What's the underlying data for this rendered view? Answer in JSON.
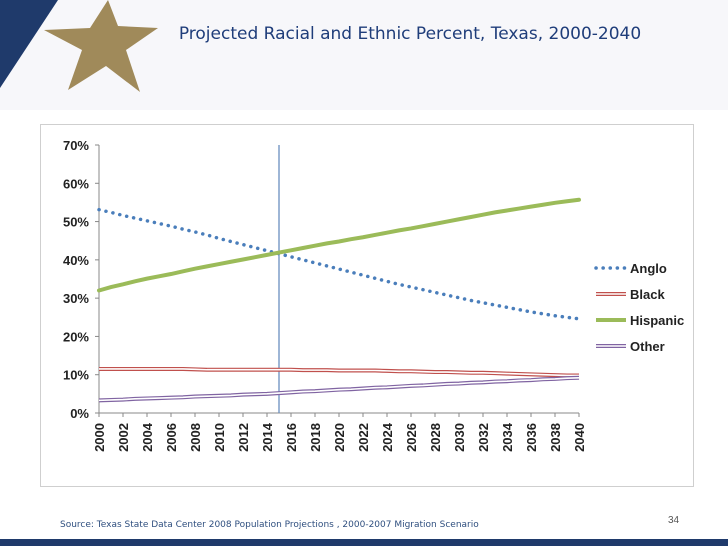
{
  "slide": {
    "title": "Projected Racial and Ethnic Percent, Texas, 2000-2040",
    "source": "Source: Texas State Data Center 2008 Population Projections , 2000-2007 Migration Scenario",
    "page_number": "34"
  },
  "colors": {
    "title": "#1f3d7a",
    "band": "#1f3a6b",
    "star": "#a08a5a",
    "anglo": "#4a7ebb",
    "black": "#c0504d",
    "hispanic": "#9bbb59",
    "other": "#8064a2",
    "marker_line": "#6a8fc0"
  },
  "chart_data": {
    "type": "line",
    "title": "",
    "xlabel": "",
    "ylabel": "",
    "x": [
      2000,
      2001,
      2002,
      2003,
      2004,
      2005,
      2006,
      2007,
      2008,
      2009,
      2010,
      2011,
      2012,
      2013,
      2014,
      2015,
      2016,
      2017,
      2018,
      2019,
      2020,
      2021,
      2022,
      2023,
      2024,
      2025,
      2026,
      2027,
      2028,
      2029,
      2030,
      2031,
      2032,
      2033,
      2034,
      2035,
      2036,
      2037,
      2038,
      2039,
      2040
    ],
    "xticks": [
      "2000",
      "2002",
      "2004",
      "2006",
      "2008",
      "2010",
      "2012",
      "2014",
      "2016",
      "2018",
      "2020",
      "2022",
      "2024",
      "2026",
      "2028",
      "2030",
      "2032",
      "2034",
      "2036",
      "2038",
      "2040"
    ],
    "yticks": [
      "0%",
      "10%",
      "20%",
      "30%",
      "40%",
      "50%",
      "60%",
      "70%"
    ],
    "ylim": [
      0,
      70
    ],
    "y_unit": "%",
    "vertical_marker_x": 2015,
    "legend_position": "right",
    "series": [
      {
        "name": "Anglo",
        "style": "dotted",
        "values": [
          53.1,
          52.4,
          51.6,
          50.9,
          50.2,
          49.5,
          48.8,
          48.0,
          47.3,
          46.5,
          45.6,
          44.8,
          44.0,
          43.2,
          42.4,
          41.6,
          40.8,
          40.0,
          39.2,
          38.4,
          37.6,
          36.8,
          36.0,
          35.2,
          34.4,
          33.6,
          32.9,
          32.2,
          31.5,
          30.8,
          30.1,
          29.4,
          28.8,
          28.2,
          27.6,
          27.0,
          26.4,
          25.9,
          25.4,
          25.0,
          24.6
        ]
      },
      {
        "name": "Black",
        "style": "double",
        "values": [
          11.5,
          11.5,
          11.5,
          11.5,
          11.5,
          11.5,
          11.5,
          11.5,
          11.4,
          11.3,
          11.3,
          11.3,
          11.3,
          11.3,
          11.3,
          11.3,
          11.3,
          11.2,
          11.2,
          11.2,
          11.1,
          11.1,
          11.1,
          11.1,
          11.0,
          10.9,
          10.9,
          10.8,
          10.7,
          10.7,
          10.6,
          10.5,
          10.5,
          10.4,
          10.3,
          10.2,
          10.1,
          10.0,
          9.9,
          9.8,
          9.8
        ]
      },
      {
        "name": "Hispanic",
        "style": "solid",
        "values": [
          32.0,
          32.9,
          33.6,
          34.4,
          35.1,
          35.7,
          36.3,
          37.0,
          37.7,
          38.3,
          38.9,
          39.5,
          40.1,
          40.7,
          41.3,
          41.9,
          42.5,
          43.1,
          43.7,
          44.3,
          44.8,
          45.4,
          45.9,
          46.5,
          47.1,
          47.7,
          48.2,
          48.8,
          49.4,
          50.0,
          50.6,
          51.2,
          51.8,
          52.4,
          52.9,
          53.4,
          53.9,
          54.4,
          54.9,
          55.3,
          55.7
        ]
      },
      {
        "name": "Other",
        "style": "double",
        "values": [
          3.3,
          3.4,
          3.5,
          3.7,
          3.8,
          3.9,
          4.0,
          4.1,
          4.3,
          4.4,
          4.5,
          4.6,
          4.8,
          4.9,
          5.0,
          5.2,
          5.4,
          5.6,
          5.7,
          5.9,
          6.1,
          6.2,
          6.4,
          6.6,
          6.7,
          6.9,
          7.1,
          7.2,
          7.4,
          7.6,
          7.7,
          7.9,
          8.0,
          8.2,
          8.3,
          8.5,
          8.6,
          8.8,
          8.9,
          9.1,
          9.2
        ]
      }
    ]
  }
}
